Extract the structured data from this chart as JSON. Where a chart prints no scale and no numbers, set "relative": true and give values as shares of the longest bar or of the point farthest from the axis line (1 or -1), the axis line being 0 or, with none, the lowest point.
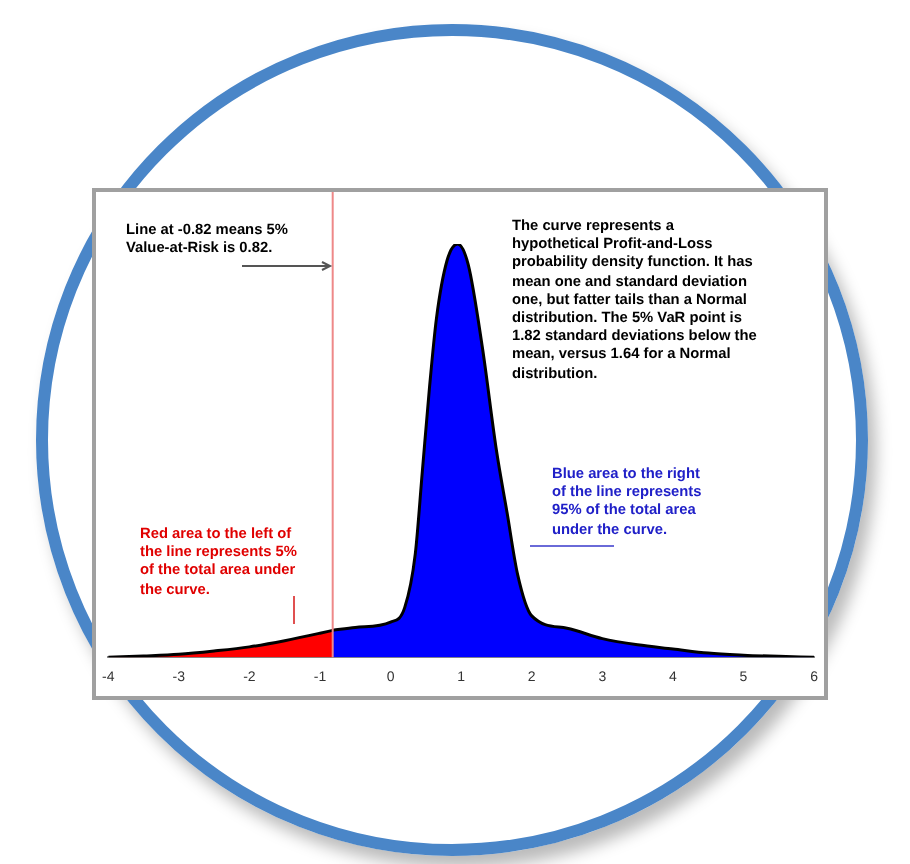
{
  "chart_data": {
    "type": "area",
    "relative": true,
    "grid": false,
    "marker": "none",
    "xlim": [
      -4,
      6
    ],
    "xticks": [
      -4,
      -3,
      -2,
      -1,
      0,
      1,
      2,
      3,
      4,
      5,
      6
    ],
    "series": [
      {
        "color": "#ff0000",
        "x": [
          -4,
          -3.5,
          -3,
          -2.5,
          -2,
          -1.5,
          -1,
          -0.82
        ],
        "values": [
          0,
          0.003,
          0.007,
          0.015,
          0.025,
          0.04,
          0.058,
          0.065
        ]
      },
      {
        "color": "#0000ff",
        "x": [
          -0.82,
          -0.5,
          0,
          0.2,
          0.35,
          0.45,
          0.55,
          0.65,
          0.8,
          0.95,
          1.1,
          1.3,
          1.5,
          1.65,
          1.8,
          2,
          2.5,
          3,
          3.5,
          4,
          4.5,
          5,
          5.5,
          6
        ],
        "values": [
          0.065,
          0.072,
          0.085,
          0.12,
          0.25,
          0.45,
          0.65,
          0.82,
          0.96,
          1,
          0.95,
          0.75,
          0.5,
          0.35,
          0.2,
          0.1,
          0.07,
          0.045,
          0.03,
          0.02,
          0.01,
          0.005,
          0.002,
          0
        ]
      }
    ],
    "ref_lines": [
      {
        "axis": "x",
        "value": -0.82,
        "color": "#ee8888"
      }
    ],
    "annotations": [
      "Line at -0.82 means 5%\nValue-at-Risk is 0.82.",
      "The curve represents a\nhypothetical Profit-and-Loss\nprobability density function. It has\nmean one and standard deviation\none, but fatter tails than a Normal\ndistribution. The 5% VaR point is\n1.82 standard deviations below the\nmean, versus 1.64 for a Normal\ndistribution.",
      "Blue area to the right\nof the line represents\n95% of the total area\nunder the curve.",
      "Red area to the left of\nthe line represents 5%\nof the total area under\nthe curve."
    ]
  }
}
